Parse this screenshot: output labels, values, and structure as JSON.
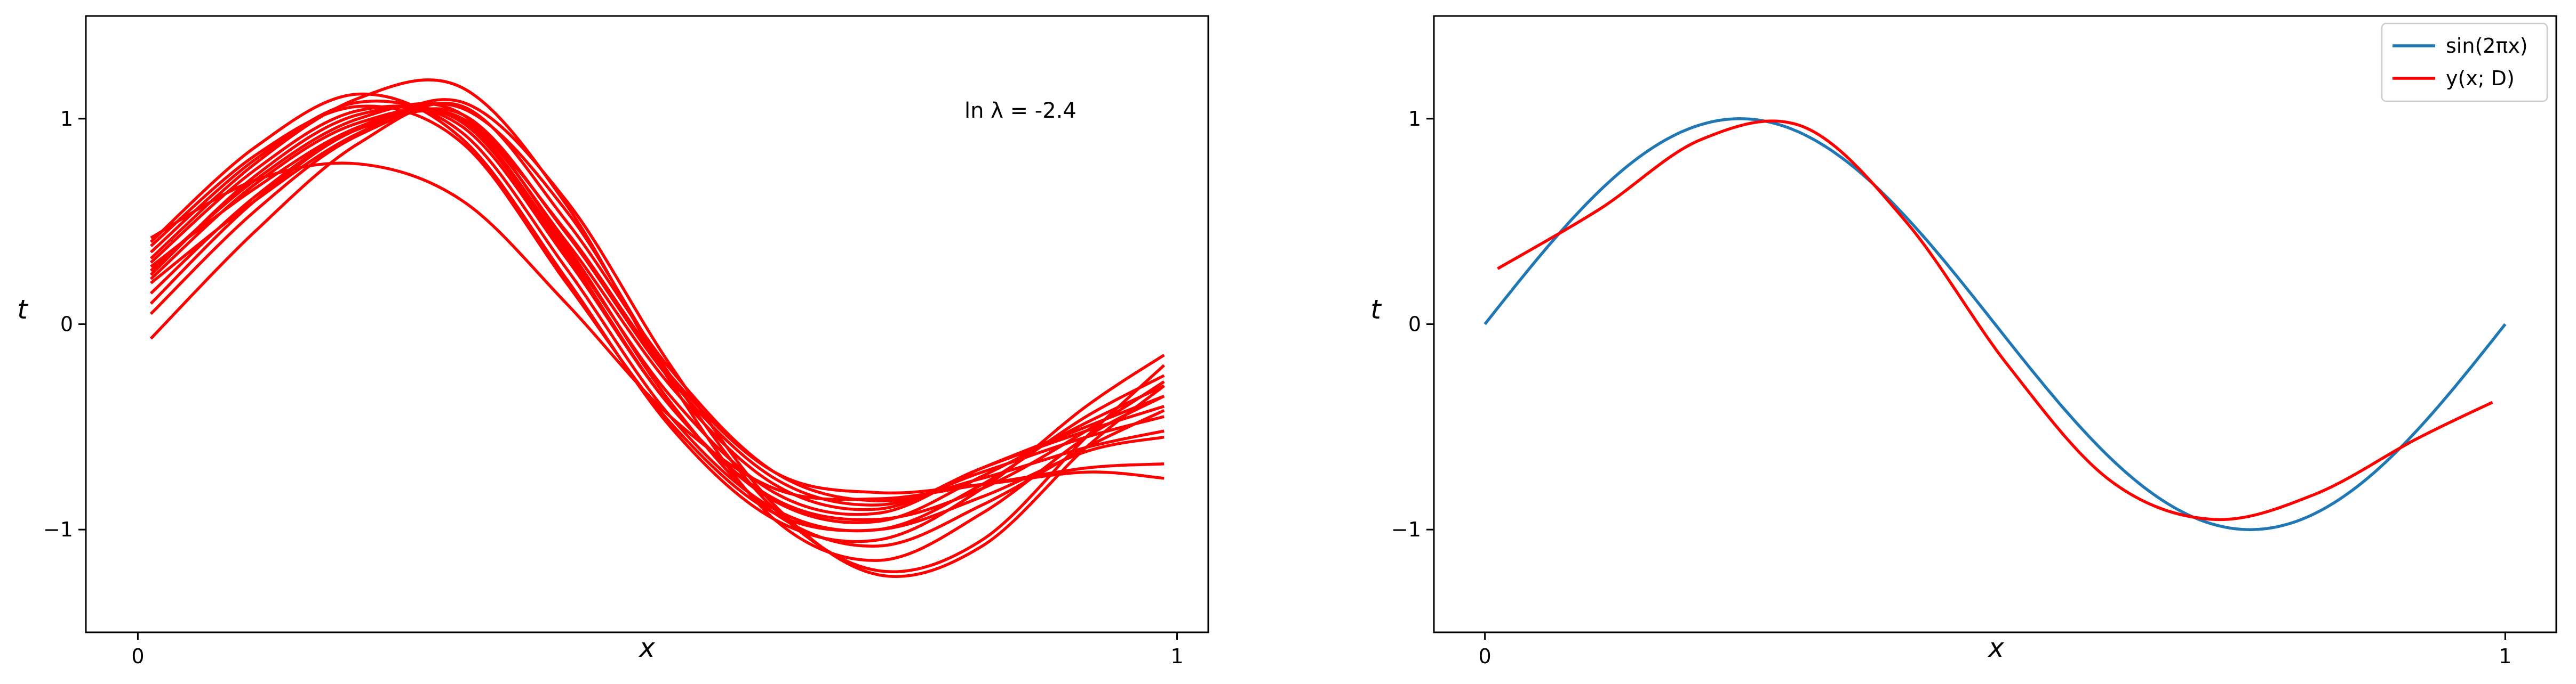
{
  "chart_data": [
    {
      "type": "line",
      "title": "",
      "xlabel": "x",
      "ylabel": "t",
      "xlim": [
        -0.05,
        1.03
      ],
      "ylim": [
        -1.5,
        1.5
      ],
      "xticks": [
        0,
        1
      ],
      "xtick_labels": [
        "0",
        "1"
      ],
      "yticks": [
        -1,
        0,
        1
      ],
      "ytick_labels": [
        "−1",
        "0",
        "1"
      ],
      "annotation": "ln λ = -2.4",
      "grid": false,
      "colors": {
        "fit": "#ff0000"
      },
      "x": [
        0.0125,
        0.1125,
        0.2125,
        0.3125,
        0.4125,
        0.5125,
        0.6125,
        0.7125,
        0.8125,
        0.9125,
        0.9875
      ],
      "series": [
        {
          "values": [
            0.4,
            0.86,
            1.12,
            0.9,
            0.22,
            -0.5,
            -0.95,
            -1.05,
            -0.8,
            -0.4,
            -0.15
          ]
        },
        {
          "values": [
            0.35,
            0.8,
            1.08,
            0.93,
            0.27,
            -0.45,
            -0.9,
            -1.0,
            -0.78,
            -0.45,
            -0.25
          ]
        },
        {
          "values": [
            0.3,
            0.75,
            1.04,
            0.96,
            0.32,
            -0.4,
            -0.86,
            -0.96,
            -0.74,
            -0.48,
            -0.3
          ]
        },
        {
          "values": [
            0.22,
            0.68,
            0.98,
            0.99,
            0.36,
            -0.35,
            -0.82,
            -0.92,
            -0.7,
            -0.5,
            -0.35
          ]
        },
        {
          "values": [
            0.15,
            0.62,
            0.95,
            1.0,
            0.4,
            -0.3,
            -0.78,
            -0.9,
            -0.7,
            -0.52,
            -0.4
          ]
        },
        {
          "values": [
            0.05,
            0.55,
            0.92,
            1.02,
            0.44,
            -0.27,
            -0.75,
            -0.88,
            -0.72,
            -0.55,
            -0.45
          ]
        },
        {
          "values": [
            -0.07,
            0.45,
            0.88,
            1.06,
            0.5,
            -0.22,
            -0.72,
            -0.86,
            -0.75,
            -0.6,
            -0.52
          ]
        },
        {
          "values": [
            0.42,
            0.7,
            0.78,
            0.6,
            0.1,
            -0.45,
            -0.8,
            -0.85,
            -0.78,
            -0.7,
            -0.68
          ]
        },
        {
          "values": [
            0.28,
            0.66,
            0.96,
            1.05,
            0.55,
            -0.25,
            -0.9,
            -1.2,
            -1.05,
            -0.55,
            -0.2
          ]
        },
        {
          "values": [
            0.2,
            0.6,
            0.93,
            1.08,
            0.6,
            -0.2,
            -0.88,
            -1.22,
            -1.08,
            -0.6,
            -0.3
          ]
        },
        {
          "values": [
            0.32,
            0.78,
            1.1,
            1.15,
            0.58,
            -0.28,
            -0.95,
            -1.15,
            -0.92,
            -0.55,
            -0.35
          ]
        },
        {
          "values": [
            0.26,
            0.7,
            1.0,
            1.02,
            0.38,
            -0.38,
            -0.92,
            -1.08,
            -0.88,
            -0.6,
            -0.42
          ]
        },
        {
          "values": [
            0.38,
            0.82,
            1.06,
            0.88,
            0.2,
            -0.48,
            -0.92,
            -1.0,
            -0.84,
            -0.62,
            -0.55
          ]
        },
        {
          "values": [
            0.1,
            0.6,
            0.95,
            1.0,
            0.45,
            -0.25,
            -0.72,
            -0.82,
            -0.78,
            -0.72,
            -0.75
          ]
        },
        {
          "values": [
            0.24,
            0.72,
            1.02,
            0.98,
            0.34,
            -0.4,
            -0.85,
            -0.95,
            -0.8,
            -0.52,
            -0.28
          ]
        }
      ]
    },
    {
      "type": "line",
      "title": "",
      "xlabel": "x",
      "ylabel": "t",
      "xlim": [
        -0.05,
        1.05
      ],
      "ylim": [
        -1.5,
        1.5
      ],
      "xticks": [
        0,
        1
      ],
      "xtick_labels": [
        "0",
        "1"
      ],
      "yticks": [
        -1,
        0,
        1
      ],
      "ytick_labels": [
        "−1",
        "0",
        "1"
      ],
      "grid": false,
      "legend_position": "top-right",
      "series": [
        {
          "name": "sin(2πx)",
          "color": "#1f77b4",
          "function": "sin(2*pi*x)",
          "x_range": [
            0,
            1
          ]
        },
        {
          "name": "y(x; D)",
          "color": "#ff0000",
          "x": [
            0.0125,
            0.1125,
            0.2125,
            0.3125,
            0.4125,
            0.5125,
            0.6125,
            0.7125,
            0.8125,
            0.9125,
            0.9875
          ],
          "values": [
            0.27,
            0.56,
            0.9,
            0.96,
            0.5,
            -0.2,
            -0.76,
            -0.95,
            -0.83,
            -0.56,
            -0.38
          ]
        }
      ]
    }
  ]
}
